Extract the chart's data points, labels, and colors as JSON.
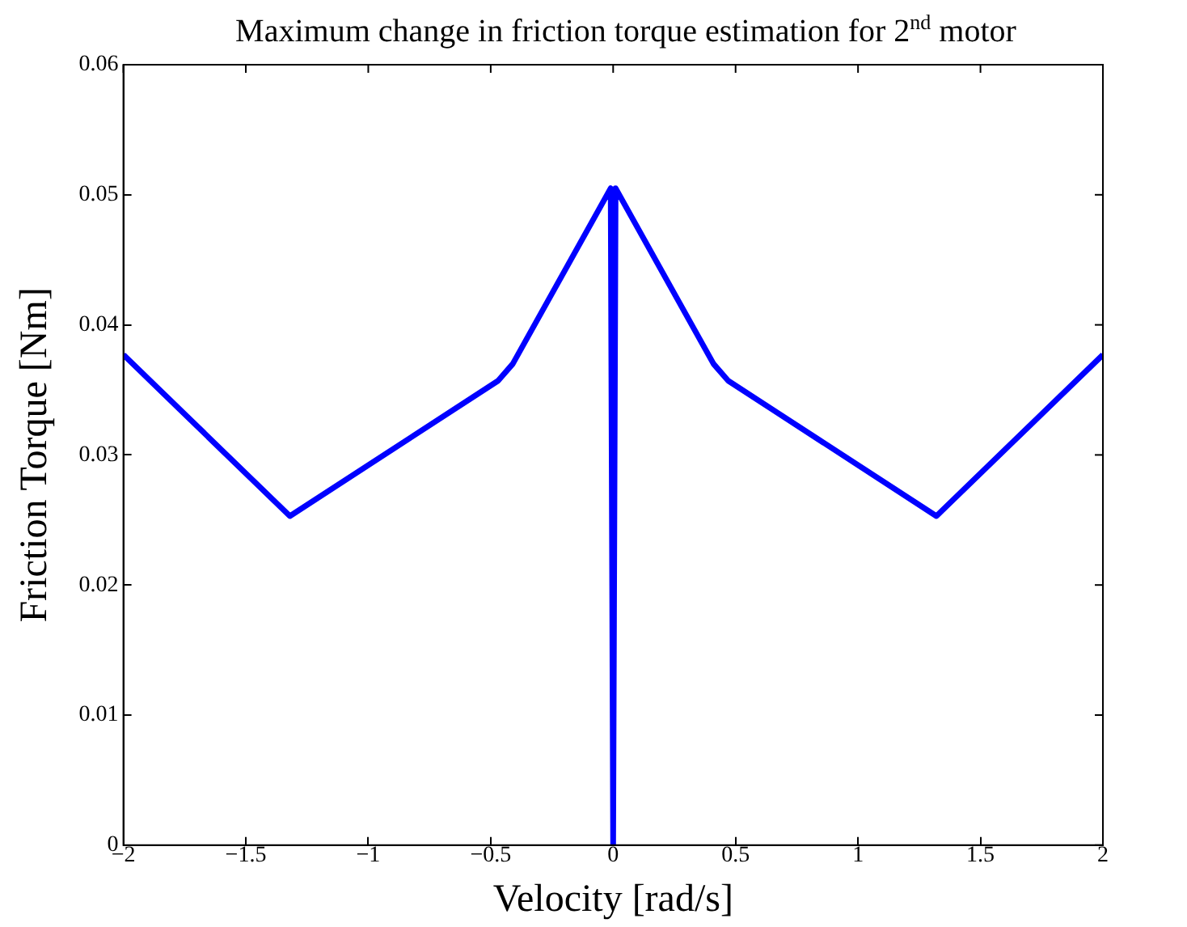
{
  "chart_data": {
    "type": "line",
    "title": "Maximum change in friction torque estimation for 2$^{nd}$ motor",
    "xlabel": "Velocity [rad/s]",
    "ylabel": "Friction Torque [Nm]",
    "series": [
      {
        "color": "#0000ff",
        "x": [
          -2,
          -1.32,
          -0.47,
          -0.41,
          -0.01,
          0,
          0.01,
          0.41,
          0.47,
          1.32,
          2
        ],
        "values": [
          0.0377,
          0.0253,
          0.0357,
          0.037,
          0.0505,
          0,
          0.0505,
          0.037,
          0.0357,
          0.0253,
          0.0377
        ]
      }
    ],
    "xlim": [
      -2,
      2
    ],
    "xticks": [
      {
        "value": -2,
        "label": "−2"
      },
      {
        "value": -1.5,
        "label": "−1.5"
      },
      {
        "value": -1,
        "label": "−1"
      },
      {
        "value": -0.5,
        "label": "−0.5"
      },
      0,
      0.5,
      1,
      1.5,
      2
    ],
    "ylim": [
      0,
      0.06
    ],
    "yticks": [
      0,
      0.01,
      0.02,
      0.03,
      0.04,
      0.05,
      0.06
    ],
    "grid": false,
    "legend": false,
    "marker": "none",
    "line_style": "solid"
  }
}
